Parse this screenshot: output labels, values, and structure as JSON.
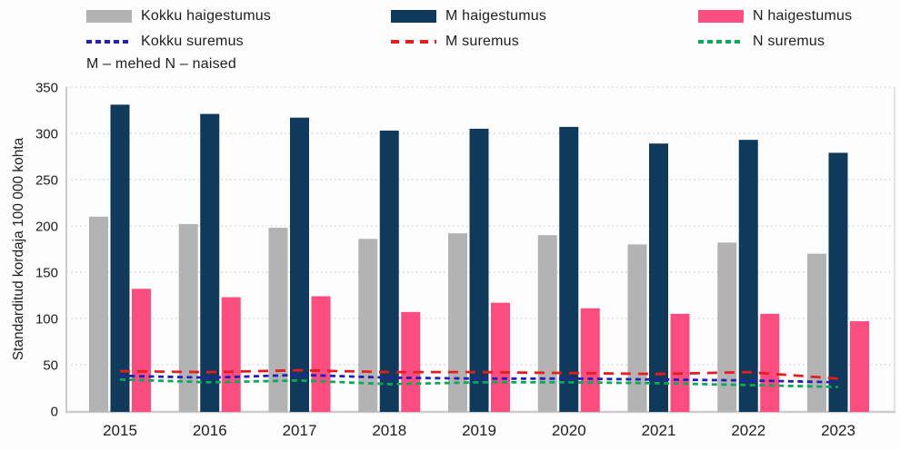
{
  "legend": {
    "items": [
      {
        "label": "Kokku haigestumus",
        "type": "bar",
        "color": "#b3b3b3"
      },
      {
        "label": "M haigestumus",
        "type": "bar",
        "color": "#0f3a5c"
      },
      {
        "label": "N haigestumus",
        "type": "bar",
        "color": "#fb4d7f"
      },
      {
        "label": "Kokku suremus",
        "type": "line",
        "color": "#2121b8",
        "dash": "short"
      },
      {
        "label": "M suremus",
        "type": "line",
        "color": "#e81c1c",
        "dash": "long"
      },
      {
        "label": "N suremus",
        "type": "line",
        "color": "#0ca95b",
        "dash": "short"
      }
    ],
    "note": "M – mehed N – naised"
  },
  "chart_data": {
    "type": "bar",
    "title": "",
    "categories": [
      "2015",
      "2016",
      "2017",
      "2018",
      "2019",
      "2020",
      "2021",
      "2022",
      "2023"
    ],
    "series": [
      {
        "name": "Kokku haigestumus",
        "type": "bar",
        "color": "#b3b3b3",
        "values": [
          210,
          202,
          198,
          186,
          192,
          190,
          180,
          182,
          170
        ]
      },
      {
        "name": "M haigestumus",
        "type": "bar",
        "color": "#0f3a5c",
        "values": [
          331,
          321,
          317,
          303,
          305,
          307,
          289,
          293,
          279
        ]
      },
      {
        "name": "N haigestumus",
        "type": "bar",
        "color": "#fb4d7f",
        "values": [
          132,
          123,
          124,
          107,
          117,
          111,
          105,
          105,
          97
        ]
      },
      {
        "name": "Kokku suremus",
        "type": "line",
        "color": "#2121b8",
        "dash": "short",
        "values": [
          38,
          36,
          39,
          36,
          35,
          35,
          34,
          33,
          31
        ]
      },
      {
        "name": "M suremus",
        "type": "line",
        "color": "#e81c1c",
        "dash": "long",
        "values": [
          43,
          42,
          44,
          42,
          42,
          41,
          40,
          42,
          35
        ]
      },
      {
        "name": "N suremus",
        "type": "line",
        "color": "#0ca95b",
        "dash": "short",
        "values": [
          34,
          31,
          33,
          29,
          31,
          31,
          30,
          28,
          26
        ]
      }
    ],
    "xlabel": "",
    "ylabel": "Standarditud kordaja 100 000 kohta",
    "ylim": [
      0,
      350
    ],
    "yticks": [
      0,
      50,
      100,
      150,
      200,
      250,
      300,
      350
    ],
    "grid": true,
    "grid_style": "dotted",
    "legend_position": "top"
  }
}
